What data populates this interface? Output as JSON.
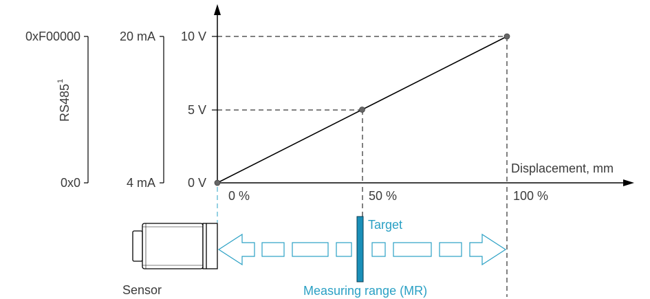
{
  "colors": {
    "line": "#000000",
    "text": "#3a3a3a",
    "accent": "#2aa0c4",
    "target_fill": "#1a8fb8",
    "points": "#666666"
  },
  "scales": {
    "rs485": {
      "label": "RS485",
      "footnote": "1",
      "top": "0xF00000",
      "bottom": "0x0"
    },
    "current": {
      "top": "20 mA",
      "bottom": "4 mA"
    },
    "voltage": {
      "top": "10 V",
      "mid": "5 V",
      "bottom": "0 V"
    }
  },
  "x_axis": {
    "label": "Displacement, mm",
    "ticks": [
      "0 %",
      "50 %",
      "100 %"
    ]
  },
  "chart_data": {
    "type": "line",
    "x": [
      0,
      50,
      100
    ],
    "y": [
      0,
      5,
      10
    ],
    "xlabel": "Displacement, mm",
    "ylabel": "",
    "xlim": [
      0,
      100
    ],
    "ylim": [
      0,
      10
    ]
  },
  "sensor": {
    "label": "Sensor"
  },
  "target": {
    "label": "Target"
  },
  "measuring_range": {
    "label": "Measuring range (MR)"
  }
}
